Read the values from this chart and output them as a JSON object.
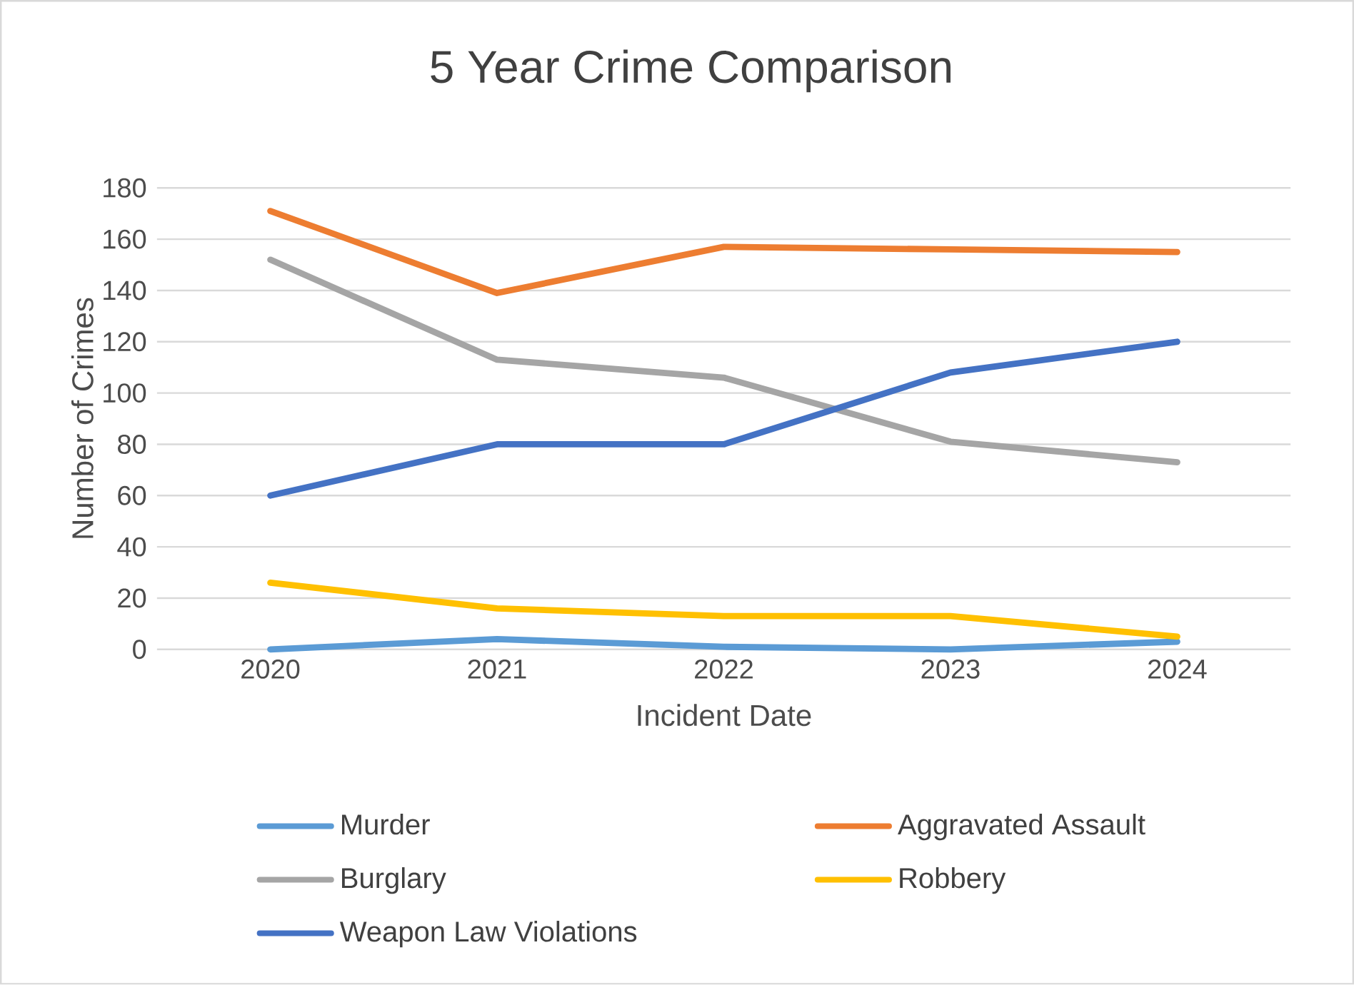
{
  "chart_data": {
    "type": "line",
    "title": "5 Year Crime Comparison",
    "xlabel": "Incident Date",
    "ylabel": "Number of Crimes",
    "categories": [
      "2020",
      "2021",
      "2022",
      "2023",
      "2024"
    ],
    "series": [
      {
        "name": "Murder",
        "color": "#5b9bd5",
        "values": [
          0,
          4,
          1,
          0,
          3
        ]
      },
      {
        "name": "Aggravated Assault",
        "color": "#ed7d31",
        "values": [
          171,
          139,
          157,
          156,
          155
        ]
      },
      {
        "name": "Burglary",
        "color": "#a5a5a5",
        "values": [
          152,
          113,
          106,
          81,
          73
        ]
      },
      {
        "name": "Robbery",
        "color": "#ffc000",
        "values": [
          26,
          16,
          13,
          13,
          5
        ]
      },
      {
        "name": "Weapon Law Violations",
        "color": "#4472c4",
        "values": [
          60,
          80,
          80,
          108,
          120
        ]
      }
    ],
    "ylim": [
      0,
      180
    ],
    "yticks": [
      0,
      20,
      40,
      60,
      80,
      100,
      120,
      140,
      160,
      180
    ],
    "grid": "y",
    "legend": "bottom",
    "marker": "none",
    "line_style": "solid"
  }
}
